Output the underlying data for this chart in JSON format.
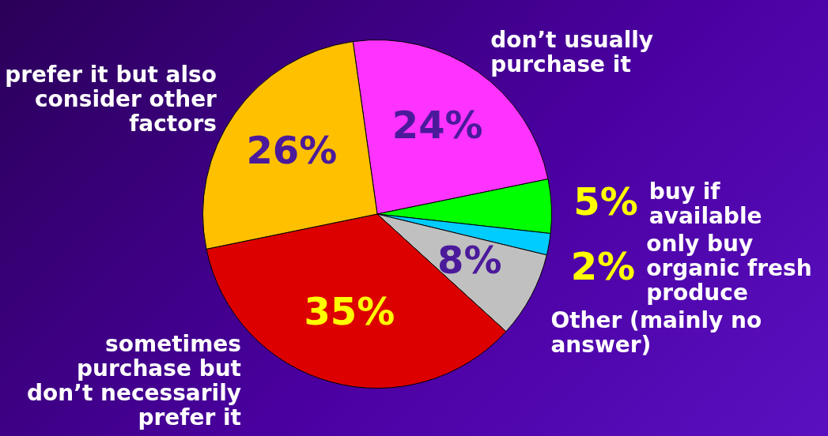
{
  "chart_data": {
    "type": "pie",
    "categories": [
      "don’t usually purchase it",
      "buy if available",
      "only buy organic fresh produce",
      "Other (mainly no answer)",
      "sometimes purchase but don’t necessarily prefer it",
      "prefer it but also consider other factors"
    ],
    "values": [
      24,
      5,
      2,
      8,
      35,
      26
    ],
    "colors": [
      "#ff33ff",
      "#00ff00",
      "#00ccff",
      "#c0c0c0",
      "#dd0000",
      "#ffc000"
    ],
    "value_labels": [
      "24%",
      "5%",
      "2%",
      "8%",
      "35%",
      "26%"
    ],
    "legend": false
  }
}
